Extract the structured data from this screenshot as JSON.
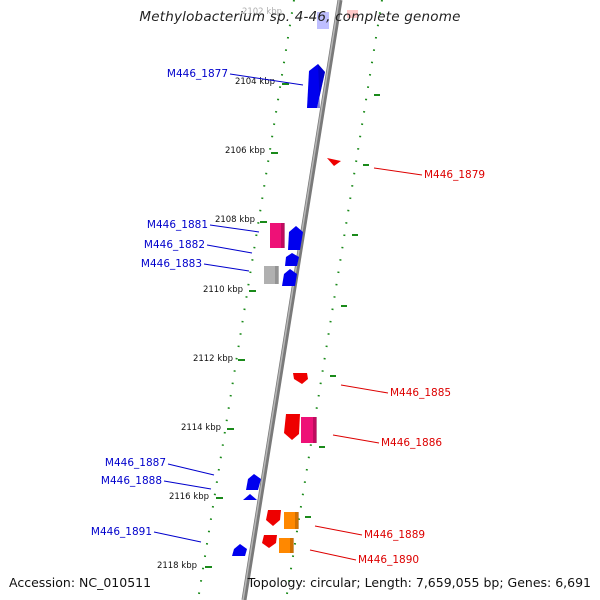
{
  "title": "Methylobacterium sp. 4-46, complete genome",
  "footer": {
    "accession": "Accession: NC_010511",
    "summary": "Topology: circular; Length: 7,659,055 bp; Genes: 6,691"
  },
  "colors": {
    "forward_label": "#0000cc",
    "reverse_label": "#dd0000",
    "backbone": "#888888",
    "tick": "#1a8a1a",
    "blue": "#0000ee",
    "red": "#ee0000",
    "magenta": "#ee1177",
    "orange": "#ff8800",
    "gray": "#aaaaaa"
  },
  "ticks": [
    {
      "label": "2102 kbp",
      "faded": true
    },
    {
      "label": "2104 kbp"
    },
    {
      "label": "2106 kbp"
    },
    {
      "label": "2108 kbp"
    },
    {
      "label": "2110 kbp"
    },
    {
      "label": "2112 kbp"
    },
    {
      "label": "2114 kbp"
    },
    {
      "label": "2116 kbp"
    },
    {
      "label": "2118 kbp"
    }
  ],
  "gene_labels": {
    "forward": [
      "M446_1877",
      "M446_1881",
      "M446_1882",
      "M446_1883",
      "M446_1887",
      "M446_1888",
      "M446_1891"
    ],
    "reverse": [
      "M446_1879",
      "M446_1885",
      "M446_1886",
      "M446_1889",
      "M446_1890"
    ]
  }
}
